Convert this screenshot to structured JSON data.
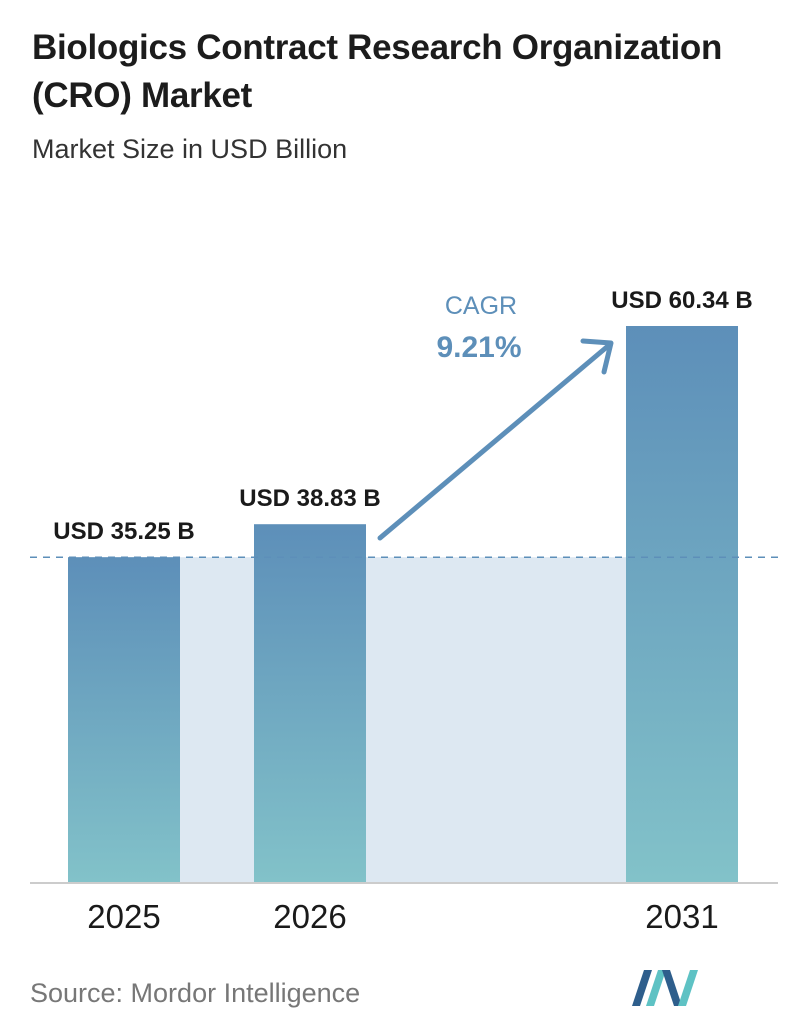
{
  "header": {
    "title": "Biologics Contract Research Organization (CRO) Market",
    "subtitle": "Market Size in USD Billion"
  },
  "chart_data": {
    "type": "bar",
    "categories": [
      "2025",
      "2026",
      "2031"
    ],
    "values": [
      35.25,
      38.83,
      60.34
    ],
    "value_labels": [
      "USD 35.25 B",
      "USD 38.83 B",
      "USD 60.34 B"
    ],
    "title": "Biologics Contract Research Organization (CRO) Market",
    "subtitle": "Market Size in USD Billion",
    "xlabel": "",
    "ylabel": "",
    "ylim": [
      0,
      60.34
    ],
    "grid": false,
    "legend": "none",
    "annotation": {
      "label": "CAGR",
      "value": "9.21%"
    },
    "reference_line": {
      "value": 35.25,
      "style": "dashed"
    }
  },
  "footer": {
    "source": "Source: Mordor Intelligence"
  },
  "colors": {
    "bar_top": "#5d8fb9",
    "bar_bottom": "#82c2c9",
    "band_fill": "#dde8f2",
    "arrow": "#5d8fb9",
    "reference_line": "#5d8fb9",
    "baseline": "#cccccc",
    "logo_dark": "#2e5e8c",
    "logo_light": "#5ec2c4"
  },
  "logo": {
    "icon": "mordor-intelligence-logo-icon"
  }
}
